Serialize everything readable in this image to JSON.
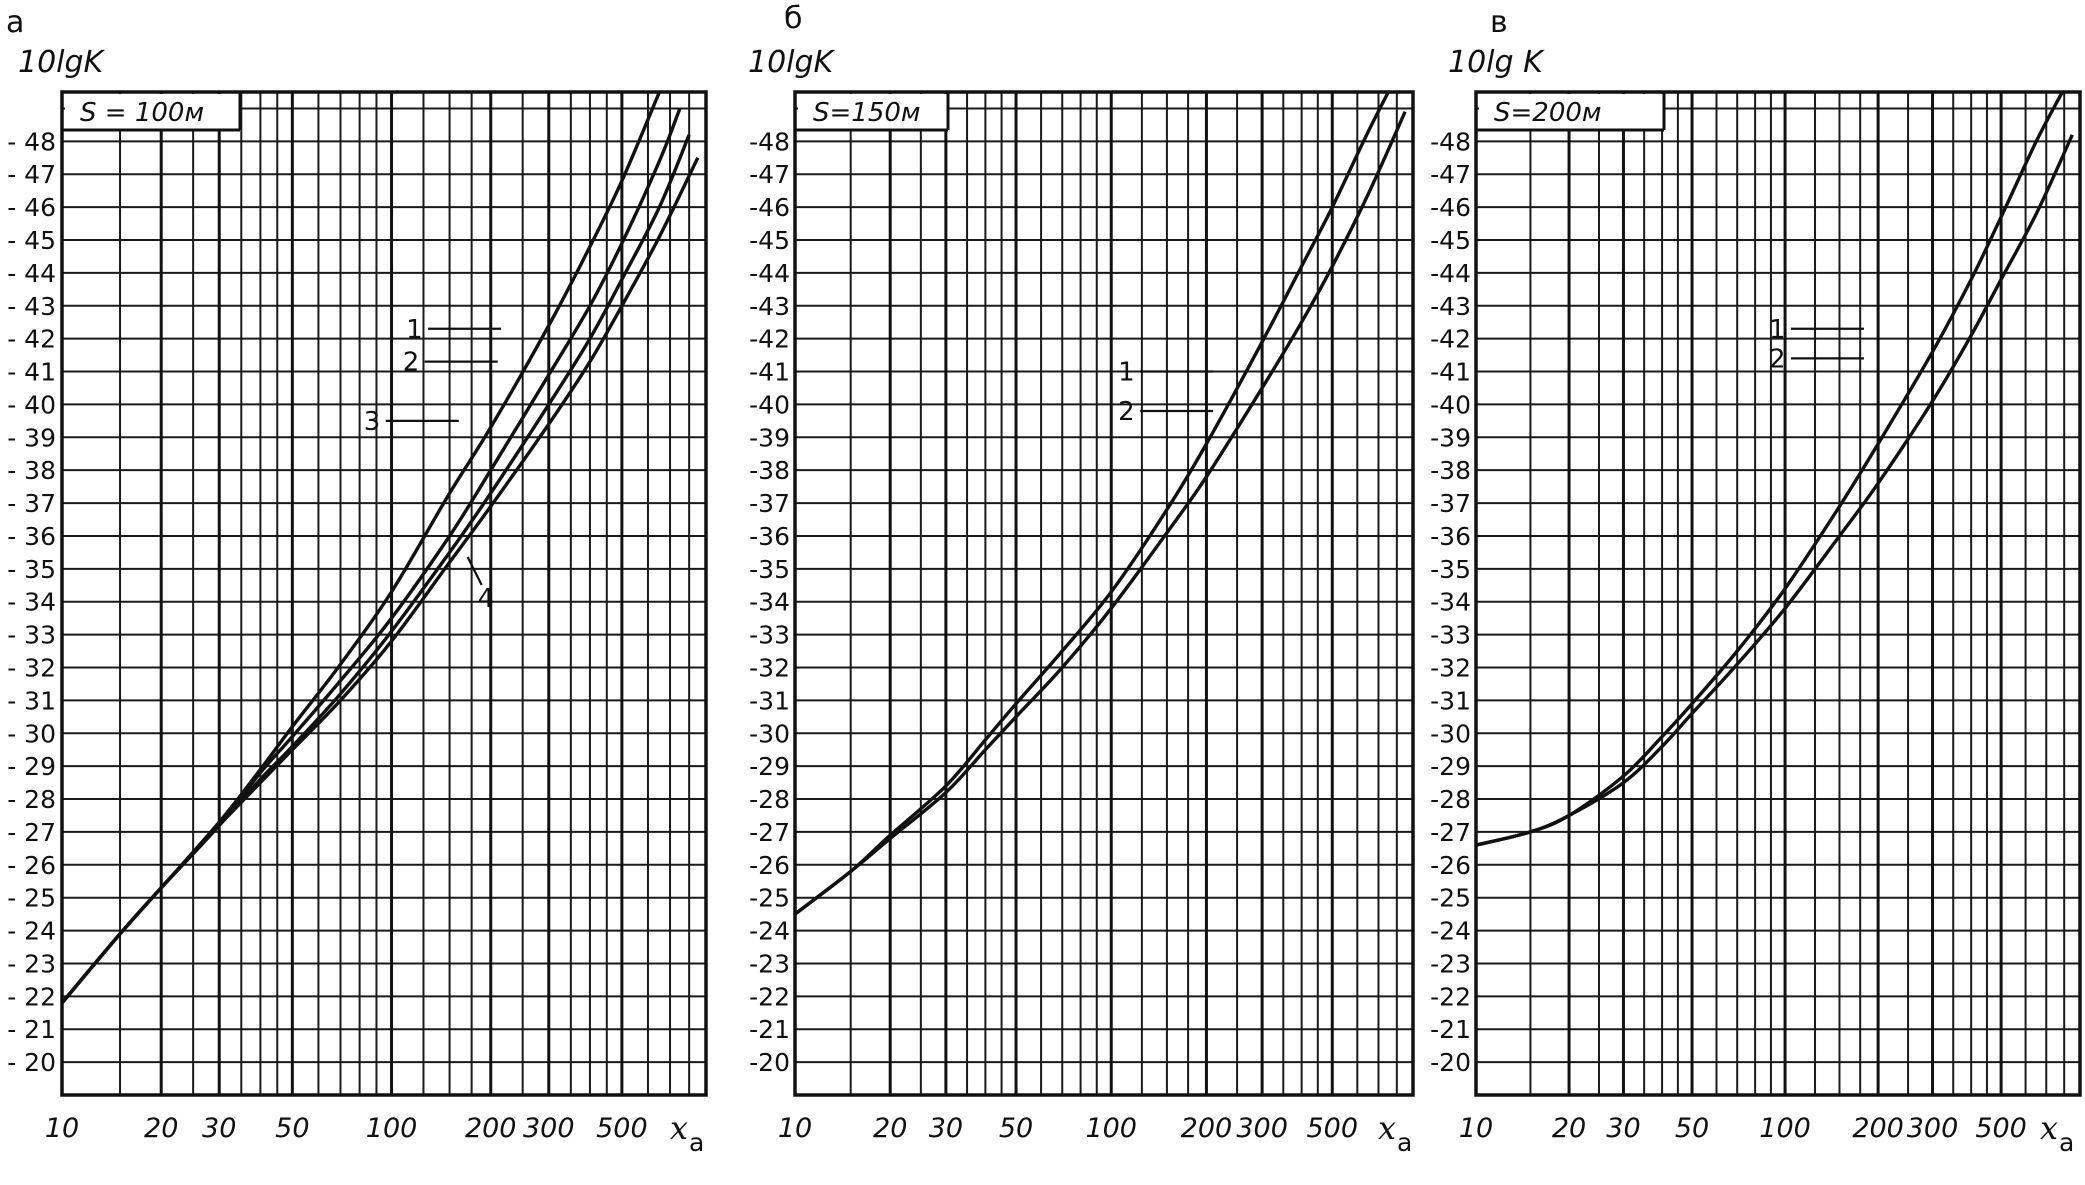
{
  "chart_data": [
    {
      "type": "line",
      "panel_letter": "а",
      "ylabel": "10lgK",
      "xlabel": "x",
      "xlabel_sub": "a",
      "annotation": "S = 100м",
      "x_scale": "log",
      "xlim": [
        10,
        900
      ],
      "ylim": [
        -19,
        -49.5
      ],
      "x_tick_labels": [
        "10",
        "20",
        "30",
        "50",
        "100",
        "200",
        "300",
        "500"
      ],
      "x_ticks": [
        10,
        20,
        30,
        50,
        100,
        200,
        300,
        500
      ],
      "y_ticks": [
        -20,
        -21,
        -22,
        -23,
        -24,
        -25,
        -26,
        -27,
        -28,
        -29,
        -30,
        -31,
        -32,
        -33,
        -34,
        -35,
        -36,
        -37,
        -38,
        -39,
        -40,
        -41,
        -42,
        -43,
        -44,
        -45,
        -46,
        -47,
        -48
      ],
      "y_tick_labels": [
        "- 20",
        "- 21",
        "- 22",
        "- 23",
        "- 24",
        "- 25",
        "- 26",
        "- 27",
        "- 28",
        "- 29",
        "- 30",
        "- 31",
        "- 32",
        "- 33",
        "- 34",
        "- 35",
        "- 36",
        "- 37",
        "- 38",
        "- 39",
        "- 40",
        "- 41",
        "- 42",
        "- 43",
        "- 44",
        "- 45",
        "- 46",
        "- 47",
        "- 48"
      ],
      "grid": true,
      "series": [
        {
          "label": "1",
          "x": [
            10,
            15,
            20,
            30,
            40,
            50,
            70,
            100,
            150,
            200,
            300,
            400,
            500,
            650
          ],
          "y": [
            -21.8,
            -23.9,
            -25.3,
            -27.3,
            -28.9,
            -30.2,
            -32.1,
            -34.3,
            -37.3,
            -39.3,
            -42.4,
            -44.8,
            -46.8,
            -49.5
          ],
          "label_at": {
            "x": 215,
            "y": -42.3
          }
        },
        {
          "label": "2",
          "x": [
            10,
            15,
            20,
            30,
            40,
            50,
            70,
            100,
            150,
            200,
            300,
            400,
            500,
            650,
            750
          ],
          "y": [
            -21.8,
            -23.9,
            -25.3,
            -27.2,
            -28.8,
            -29.9,
            -31.6,
            -33.5,
            -36.0,
            -38.0,
            -40.9,
            -43.0,
            -44.9,
            -47.4,
            -49.0
          ],
          "label_at": {
            "x": 210,
            "y": -41.3
          }
        },
        {
          "label": "3",
          "x": [
            10,
            15,
            20,
            30,
            40,
            50,
            70,
            100,
            150,
            200,
            300,
            400,
            500,
            650,
            800
          ],
          "y": [
            -21.8,
            -23.9,
            -25.3,
            -27.2,
            -28.6,
            -29.6,
            -31.2,
            -33.1,
            -35.5,
            -37.3,
            -40.0,
            -42.0,
            -43.8,
            -46.0,
            -48.2
          ],
          "label_at": {
            "x": 160,
            "y": -39.5
          }
        },
        {
          "label": "4",
          "x": [
            10,
            15,
            20,
            30,
            40,
            50,
            70,
            100,
            150,
            200,
            300,
            400,
            500,
            650,
            850
          ],
          "y": [
            -21.8,
            -23.9,
            -25.3,
            -27.2,
            -28.5,
            -29.5,
            -31.0,
            -32.8,
            -35.2,
            -36.9,
            -39.4,
            -41.3,
            -43.0,
            -45.1,
            -47.5
          ],
          "label_at": {
            "x": 180,
            "y": -35.3
          }
        }
      ]
    },
    {
      "type": "line",
      "panel_letter": "б",
      "ylabel": "10lgK",
      "xlabel": "x",
      "xlabel_sub": "a",
      "annotation": "S=150м",
      "x_scale": "log",
      "xlim": [
        10,
        900
      ],
      "ylim": [
        -19,
        -49.5
      ],
      "x_tick_labels": [
        "10",
        "20",
        "30",
        "50",
        "100",
        "200",
        "300",
        "500"
      ],
      "x_ticks": [
        10,
        20,
        30,
        50,
        100,
        200,
        300,
        500
      ],
      "y_ticks": [
        -20,
        -21,
        -22,
        -23,
        -24,
        -25,
        -26,
        -27,
        -28,
        -29,
        -30,
        -31,
        -32,
        -33,
        -34,
        -35,
        -36,
        -37,
        -38,
        -39,
        -40,
        -41,
        -42,
        -43,
        -44,
        -45,
        -46,
        -47,
        -48
      ],
      "y_tick_labels": [
        "-20",
        "-21",
        "-22",
        "-23",
        "-24",
        "-25",
        "-26",
        "-27",
        "-28",
        "-29",
        "-30",
        "-31",
        "-32",
        "-33",
        "-34",
        "-35",
        "-36",
        "-37",
        "-38",
        "-39",
        "-40",
        "-41",
        "-42",
        "-43",
        "-44",
        "-45",
        "-46",
        "-47",
        "-48"
      ],
      "grid": true,
      "series": [
        {
          "label": "1",
          "x": [
            10,
            15,
            20,
            30,
            40,
            50,
            70,
            100,
            150,
            200,
            300,
            400,
            500,
            650,
            800
          ],
          "y": [
            -24.5,
            -25.8,
            -26.9,
            -28.4,
            -29.8,
            -30.9,
            -32.5,
            -34.3,
            -36.8,
            -38.8,
            -41.9,
            -44.2,
            -46.0,
            -48.3,
            -50.0
          ],
          "label_at": {
            "x": 210,
            "y": -41.0
          }
        },
        {
          "label": "2",
          "x": [
            10,
            15,
            20,
            30,
            40,
            50,
            70,
            100,
            150,
            200,
            300,
            400,
            500,
            650,
            850
          ],
          "y": [
            -24.5,
            -25.8,
            -26.8,
            -28.2,
            -29.5,
            -30.5,
            -32.0,
            -33.8,
            -36.1,
            -37.8,
            -40.5,
            -42.5,
            -44.2,
            -46.4,
            -48.9
          ],
          "label_at": {
            "x": 210,
            "y": -39.8
          }
        }
      ]
    },
    {
      "type": "line",
      "panel_letter": "в",
      "ylabel": "10lg K",
      "xlabel": "x",
      "xlabel_sub": "a",
      "annotation": "S=200м",
      "x_scale": "log",
      "xlim": [
        10,
        900
      ],
      "ylim": [
        -19,
        -49.5
      ],
      "x_tick_labels": [
        "10",
        "20",
        "30",
        "50",
        "100",
        "200",
        "300",
        "500"
      ],
      "x_ticks": [
        10,
        20,
        30,
        50,
        100,
        200,
        300,
        500
      ],
      "y_ticks": [
        -20,
        -21,
        -22,
        -23,
        -24,
        -25,
        -26,
        -27,
        -28,
        -29,
        -30,
        -31,
        -32,
        -33,
        -34,
        -35,
        -36,
        -37,
        -38,
        -39,
        -40,
        -41,
        -42,
        -43,
        -44,
        -45,
        -46,
        -47,
        -48
      ],
      "y_tick_labels": [
        "-20",
        "-21",
        "-22",
        "-23",
        "-24",
        "-25",
        "-26",
        "-27",
        "-28",
        "-29",
        "-30",
        "-31",
        "-32",
        "-33",
        "-34",
        "-35",
        "-36",
        "-37",
        "-38",
        "-39",
        "-40",
        "-41",
        "-42",
        "-43",
        "-44",
        "-45",
        "-46",
        "-47",
        "-48"
      ],
      "grid": true,
      "series": [
        {
          "label": "1",
          "x": [
            10,
            15,
            20,
            30,
            40,
            50,
            70,
            100,
            150,
            200,
            300,
            400,
            500,
            650,
            800
          ],
          "y": [
            -26.6,
            -27.0,
            -27.5,
            -28.7,
            -29.9,
            -30.9,
            -32.5,
            -34.4,
            -36.9,
            -38.8,
            -41.6,
            -43.8,
            -45.7,
            -48.0,
            -49.6
          ],
          "label_at": {
            "x": 180,
            "y": -42.3
          }
        },
        {
          "label": "2",
          "x": [
            10,
            15,
            20,
            30,
            40,
            50,
            70,
            100,
            150,
            200,
            300,
            400,
            500,
            650,
            850
          ],
          "y": [
            -26.6,
            -27.0,
            -27.5,
            -28.5,
            -29.6,
            -30.6,
            -32.1,
            -33.8,
            -36.0,
            -37.6,
            -40.1,
            -42.1,
            -43.8,
            -45.8,
            -48.2
          ],
          "label_at": {
            "x": 180,
            "y": -41.4
          }
        }
      ]
    }
  ]
}
